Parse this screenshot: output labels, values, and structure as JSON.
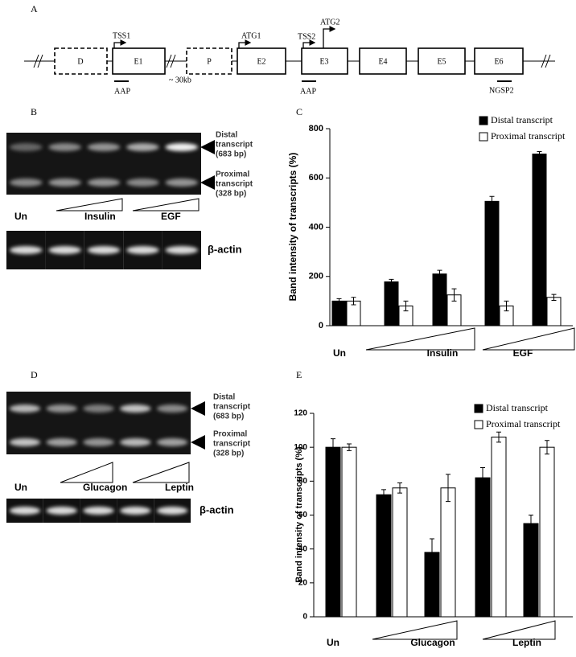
{
  "diagram": {
    "panel": "A",
    "exons": [
      "D",
      "E1",
      "P",
      "E2",
      "E3",
      "E4",
      "E5",
      "E6"
    ],
    "sites": [
      "TSS1",
      "ATG1",
      "TSS2",
      "ATG2"
    ],
    "distance": "~ 30kb",
    "primers": [
      "AAP",
      "AAP",
      "NGSP2"
    ]
  },
  "gels": [
    {
      "panel": "B",
      "distal": [
        "Distal",
        "transcript",
        "(683 bp)"
      ],
      "proximal": [
        "Proximal",
        "transcript",
        "(328 bp)"
      ],
      "lanes": [
        "Un",
        "Insulin",
        "EGF"
      ],
      "control": "β-actin"
    },
    {
      "panel": "D",
      "distal": [
        "Distal",
        "transcript",
        "(683 bp)"
      ],
      "proximal": [
        "Proximal",
        "transcript",
        "(328 bp)"
      ],
      "lanes": [
        "Un",
        "Glucagon",
        "Leptin"
      ],
      "control": "β-actin"
    }
  ],
  "chart_data": [
    {
      "type": "bar",
      "panel": "C",
      "ylabel": "Band intensity of transcripts (%)",
      "categories": [
        "Un",
        null,
        null,
        null,
        null
      ],
      "treatment_labels": [
        "Insulin",
        "EGF"
      ],
      "series": [
        {
          "name": "Distal transcript",
          "color": "#000000",
          "values": [
            100,
            178,
            210,
            505,
            697
          ],
          "errors": [
            10,
            10,
            15,
            20,
            10
          ]
        },
        {
          "name": "Proximal transcript",
          "color": "#ffffff",
          "values": [
            100,
            80,
            125,
            80,
            115
          ],
          "errors": [
            15,
            20,
            25,
            20,
            12
          ]
        }
      ],
      "ylim": [
        0,
        800
      ],
      "yticks": [
        0,
        200,
        400,
        600,
        800
      ]
    },
    {
      "type": "bar",
      "panel": "E",
      "ylabel": "Band intensity of transcripts (%)",
      "categories": [
        "Un",
        null,
        null,
        null,
        null
      ],
      "treatment_labels": [
        "Glucagon",
        "Leptin"
      ],
      "series": [
        {
          "name": "Distal transcript",
          "color": "#000000",
          "values": [
            100,
            72,
            38,
            82,
            55
          ],
          "errors": [
            5,
            3,
            8,
            6,
            5
          ]
        },
        {
          "name": "Proximal transcript",
          "color": "#ffffff",
          "values": [
            100,
            76,
            76,
            106,
            100
          ],
          "errors": [
            2,
            3,
            8,
            3,
            4
          ]
        }
      ],
      "ylim": [
        0,
        120
      ],
      "yticks": [
        0,
        20,
        40,
        60,
        80,
        100,
        120
      ]
    }
  ]
}
